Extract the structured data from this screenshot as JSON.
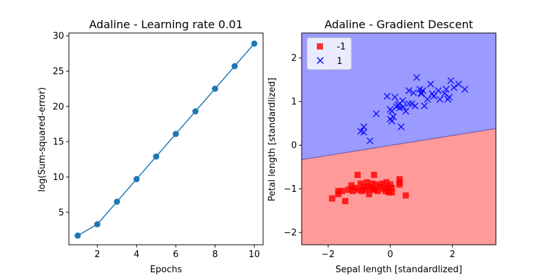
{
  "chart_data": [
    {
      "type": "line",
      "title": "Adaline - Learning rate 0.01",
      "xlabel": "Epochs",
      "ylabel": "log(Sum-squared-error)",
      "xlim": [
        0.55,
        10.45
      ],
      "ylim": [
        0.4,
        30.4
      ],
      "xticks": [
        2,
        4,
        6,
        8,
        10
      ],
      "yticks": [
        5,
        10,
        15,
        20,
        25,
        30
      ],
      "grid": false,
      "color": "#1f77b4",
      "x": [
        1,
        2,
        3,
        4,
        5,
        6,
        7,
        8,
        9,
        10
      ],
      "y": [
        1.7,
        3.3,
        6.5,
        9.7,
        12.9,
        16.1,
        19.3,
        22.5,
        25.7,
        28.9
      ]
    },
    {
      "type": "scatter",
      "title": "Adaline - Gradient Descent",
      "xlabel": "Sepal length [standardlized]",
      "ylabel": "Petal length [standardlized]",
      "xlim": [
        -2.85,
        3.4
      ],
      "ylim": [
        -2.28,
        2.57
      ],
      "xticks": [
        -2,
        0,
        2
      ],
      "yticks": [
        -2,
        -1,
        0,
        1,
        2
      ],
      "grid": false,
      "legend_position": "top-left",
      "decision_regions": [
        {
          "class": "-1",
          "color": "#ff9a9a"
        },
        {
          "class": "1",
          "color": "#9a9aff"
        }
      ],
      "decision_boundary": {
        "x": [
          -2.85,
          3.4
        ],
        "y": [
          -0.33,
          0.38
        ]
      },
      "series": [
        {
          "name": "-1",
          "marker": "square",
          "color": "#ff0000",
          "points": [
            [
              -1.87,
              -1.22
            ],
            [
              -1.67,
              -1.05
            ],
            [
              -1.67,
              -1.12
            ],
            [
              -1.55,
              -1.05
            ],
            [
              -1.45,
              -1.28
            ],
            [
              -1.35,
              -1.02
            ],
            [
              -1.25,
              -0.92
            ],
            [
              -1.2,
              -1.05
            ],
            [
              -1.15,
              -0.98
            ],
            [
              -1.05,
              -0.68
            ],
            [
              -1.02,
              -1.02
            ],
            [
              -0.95,
              -0.88
            ],
            [
              -0.92,
              -1.05
            ],
            [
              -0.85,
              -0.95
            ],
            [
              -0.8,
              -1.02
            ],
            [
              -0.75,
              -0.85
            ],
            [
              -0.7,
              -0.95
            ],
            [
              -0.68,
              -1.12
            ],
            [
              -0.62,
              -0.98
            ],
            [
              -0.58,
              -0.88
            ],
            [
              -0.55,
              -1.02
            ],
            [
              -0.52,
              -0.68
            ],
            [
              -0.5,
              -1.02
            ],
            [
              -0.45,
              -0.9
            ],
            [
              -0.4,
              -1.05
            ],
            [
              -0.32,
              -0.95
            ],
            [
              -0.25,
              -0.88
            ],
            [
              -0.2,
              -1.0
            ],
            [
              -0.15,
              -1.05
            ],
            [
              -0.12,
              -0.85
            ],
            [
              -0.08,
              -0.98
            ],
            [
              -0.05,
              -1.08
            ],
            [
              0.0,
              -0.9
            ],
            [
              0.05,
              -1.08
            ],
            [
              0.05,
              -0.98
            ],
            [
              0.3,
              -0.78
            ],
            [
              0.3,
              -0.9
            ],
            [
              0.3,
              -0.85
            ],
            [
              0.5,
              -1.15
            ],
            [
              -0.05,
              -1.02
            ]
          ]
        },
        {
          "name": "1",
          "marker": "x",
          "color": "#0000ff",
          "points": [
            [
              -0.95,
              0.32
            ],
            [
              -0.85,
              0.42
            ],
            [
              -0.85,
              0.3
            ],
            [
              -0.65,
              0.1
            ],
            [
              -0.45,
              0.72
            ],
            [
              -0.1,
              1.12
            ],
            [
              0.0,
              0.82
            ],
            [
              0.0,
              0.6
            ],
            [
              0.05,
              0.78
            ],
            [
              0.05,
              0.55
            ],
            [
              0.1,
              0.65
            ],
            [
              0.15,
              1.1
            ],
            [
              0.2,
              0.88
            ],
            [
              0.25,
              0.92
            ],
            [
              0.3,
              0.95
            ],
            [
              0.3,
              0.85
            ],
            [
              0.35,
              0.42
            ],
            [
              0.4,
              1.02
            ],
            [
              0.42,
              0.88
            ],
            [
              0.5,
              0.78
            ],
            [
              0.6,
              1.25
            ],
            [
              0.7,
              0.95
            ],
            [
              0.75,
              1.2
            ],
            [
              0.8,
              0.9
            ],
            [
              0.85,
              1.55
            ],
            [
              0.95,
              1.28
            ],
            [
              1.0,
              1.18
            ],
            [
              1.05,
              1.25
            ],
            [
              1.1,
              0.9
            ],
            [
              1.2,
              1.05
            ],
            [
              1.3,
              1.4
            ],
            [
              1.35,
              1.18
            ],
            [
              1.4,
              1.12
            ],
            [
              1.55,
              1.25
            ],
            [
              1.6,
              1.05
            ],
            [
              1.75,
              1.18
            ],
            [
              1.8,
              1.28
            ],
            [
              1.85,
              1.05
            ],
            [
              1.95,
              1.48
            ],
            [
              2.05,
              1.32
            ],
            [
              2.2,
              1.4
            ],
            [
              2.4,
              1.28
            ],
            [
              1.9,
              1.1
            ],
            [
              0.6,
              0.95
            ],
            [
              1.0,
              1.2
            ]
          ]
        }
      ]
    }
  ]
}
